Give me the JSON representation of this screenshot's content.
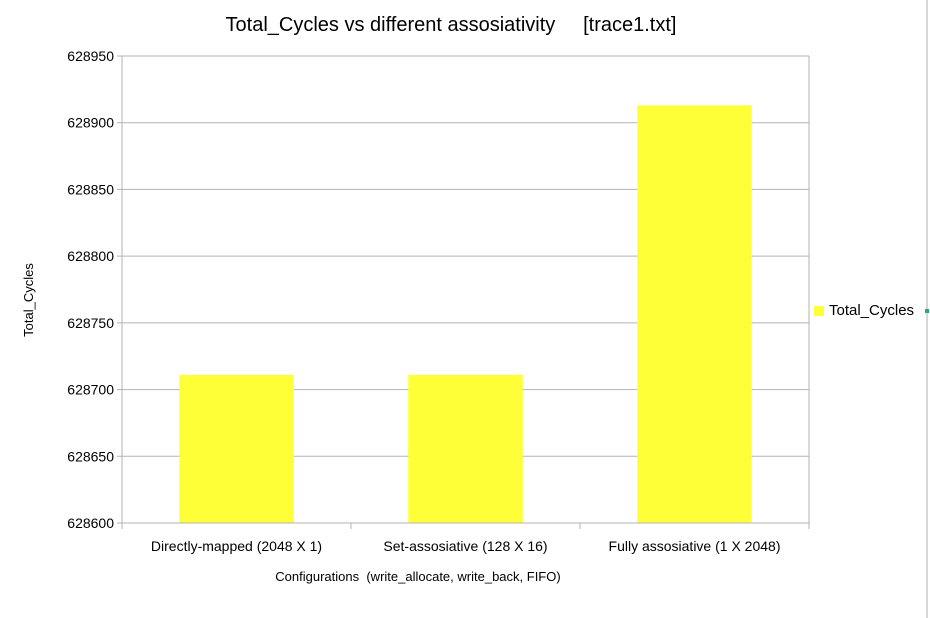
{
  "chart_data": {
    "type": "bar",
    "title": "Total_Cycles vs different assosiativity     [trace1.txt]",
    "xlabel": "Configurations  (write_allocate, write_back, FIFO)",
    "ylabel": "Total_Cycles",
    "categories": [
      "Directly-mapped (2048 X 1)",
      "Set-assosiative (128 X 16)",
      "Fully assosiative (1 X 2048)"
    ],
    "series": [
      {
        "name": "Total_Cycles",
        "values": [
          628711,
          628711,
          628913
        ]
      }
    ],
    "ylim": [
      628600,
      628950
    ],
    "yticks": [
      628600,
      628650,
      628700,
      628750,
      628800,
      628850,
      628900,
      628950
    ],
    "bar_color": "#ffff38",
    "grid": true,
    "legend_position": "right"
  }
}
